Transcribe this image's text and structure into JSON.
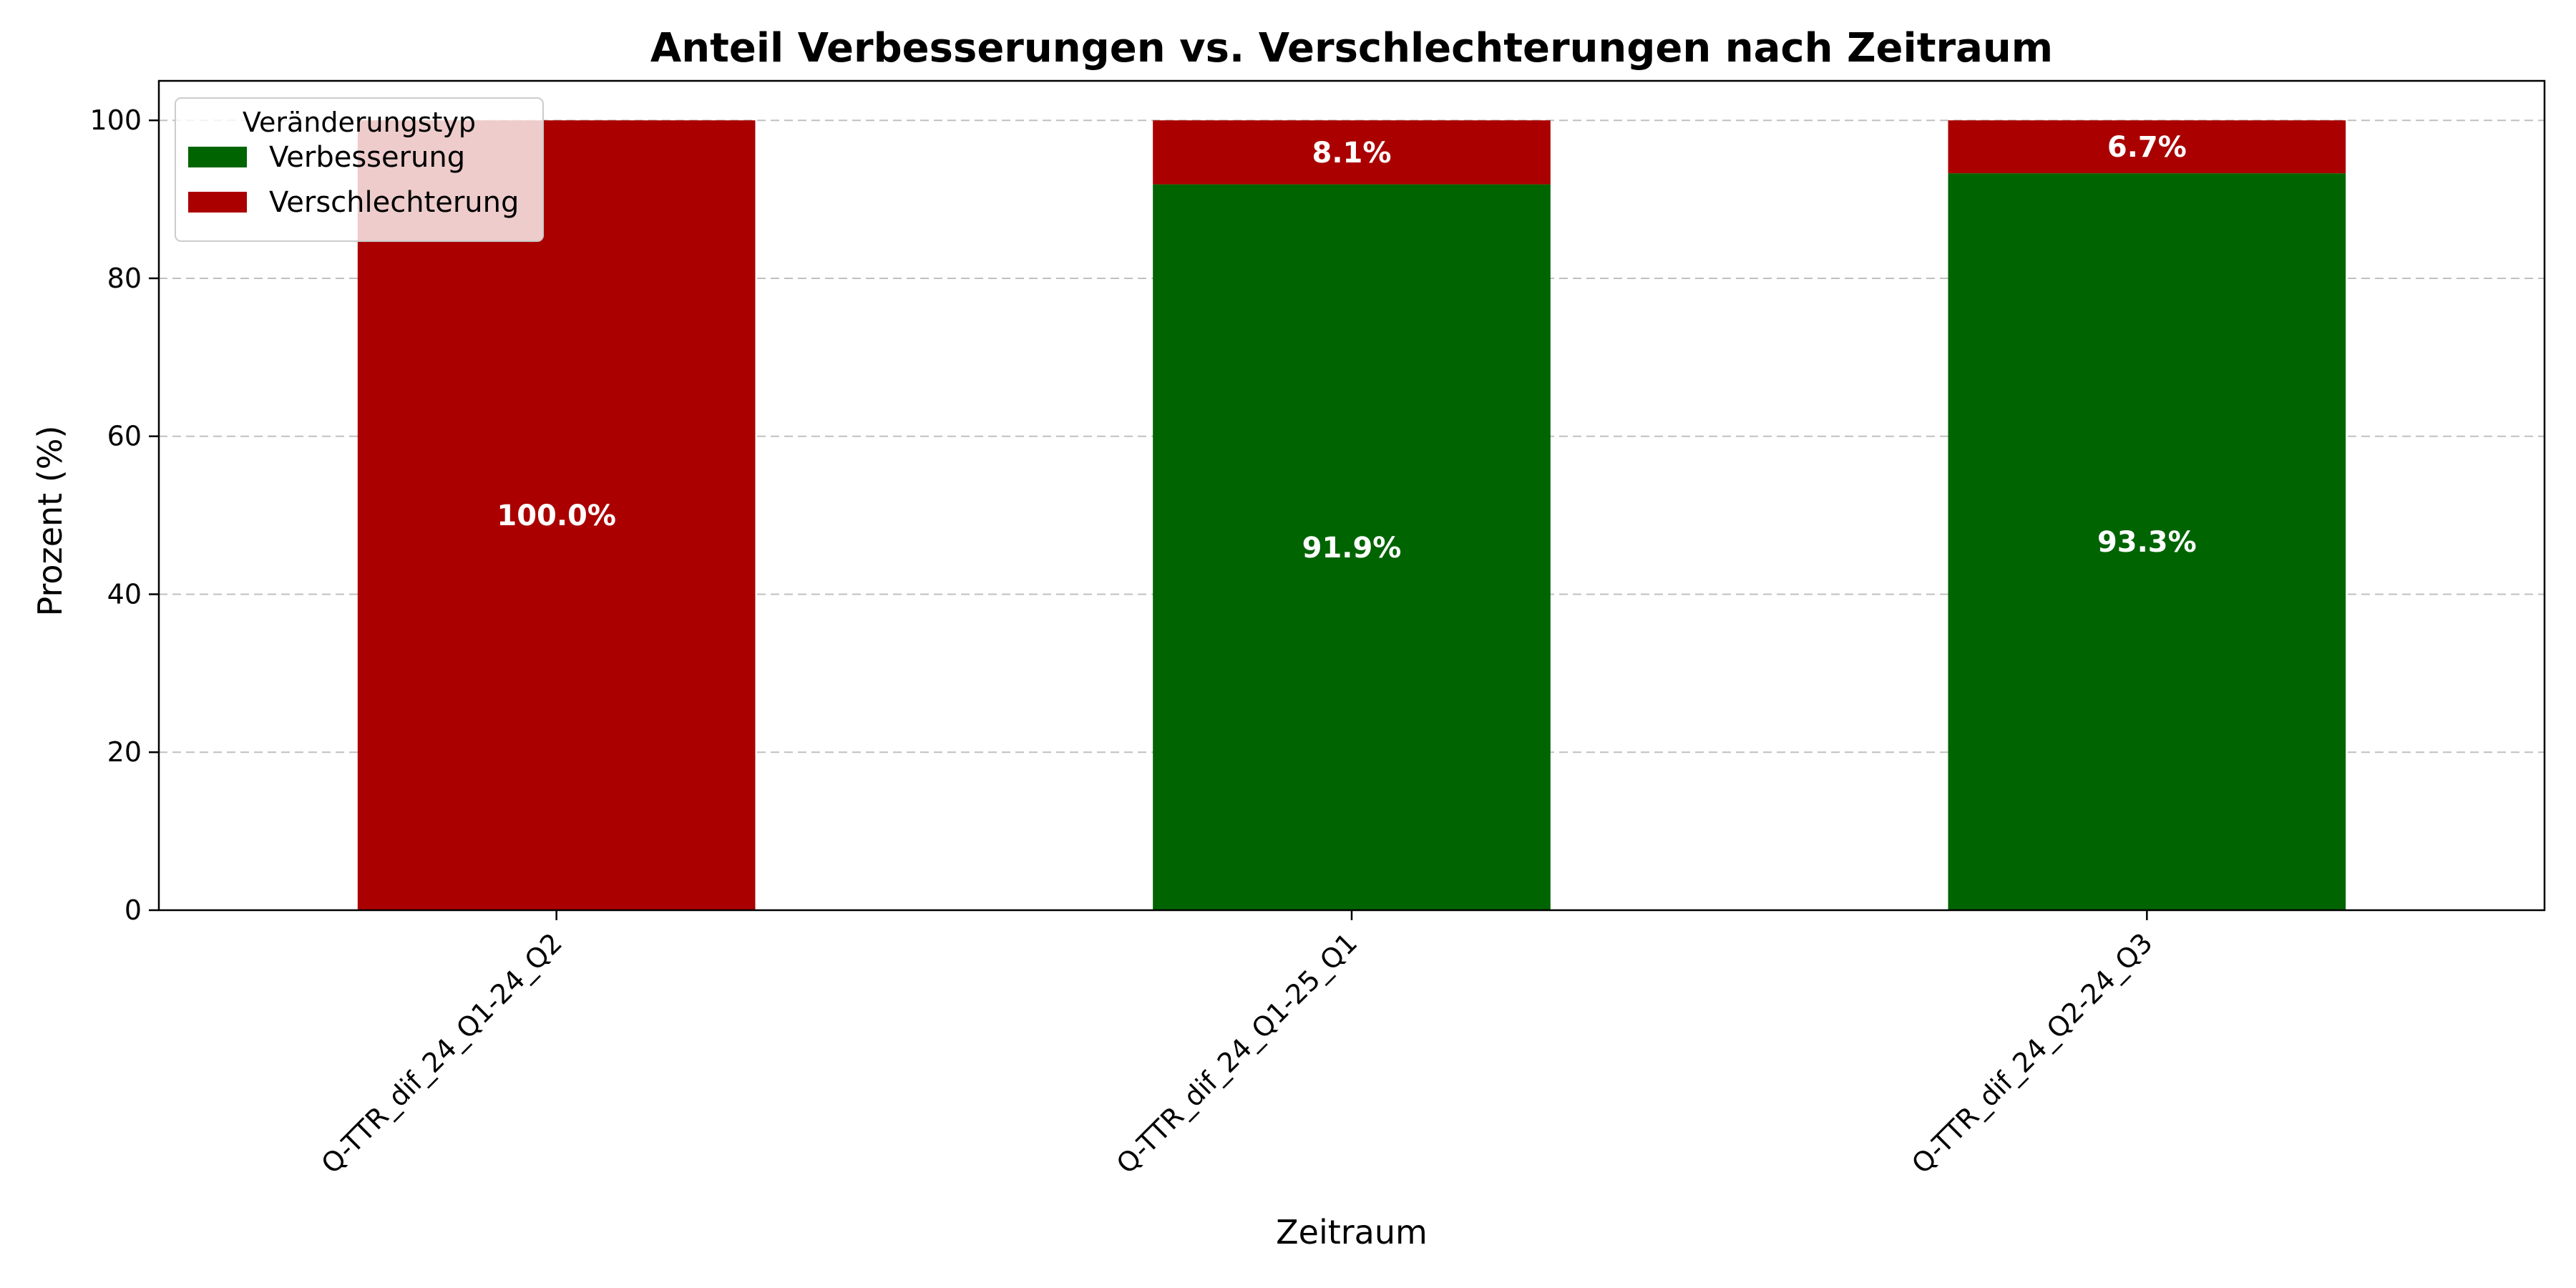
{
  "chart_data": {
    "type": "bar",
    "stacked": true,
    "title": "Anteil Verbesserungen vs. Verschlechterungen nach Zeitraum",
    "xlabel": "Zeitraum",
    "ylabel": "Prozent (%)",
    "ylim": [
      0,
      105
    ],
    "yticks": [
      0,
      20,
      40,
      60,
      80,
      100
    ],
    "categories": [
      "Q-TTR_dif_24_Q1-24_Q2",
      "Q-TTR_dif_24_Q1-25_Q1",
      "Q-TTR_dif_24_Q2-24_Q3"
    ],
    "series": [
      {
        "name": "Verbesserung",
        "values": [
          0,
          91.9,
          93.3
        ],
        "color": "#006400"
      },
      {
        "name": "Verschlechterung",
        "values": [
          100.0,
          8.1,
          6.7
        ],
        "color": "#aa0000"
      }
    ],
    "data_labels": [
      [
        "",
        "91.9%",
        "93.3%"
      ],
      [
        "100.0%",
        "8.1%",
        "6.7%"
      ]
    ],
    "legend": {
      "title": "Veränderungstyp",
      "placement": "top-left"
    },
    "grid": {
      "y": true,
      "style": "dashed",
      "color": "#c0c0c0"
    }
  }
}
